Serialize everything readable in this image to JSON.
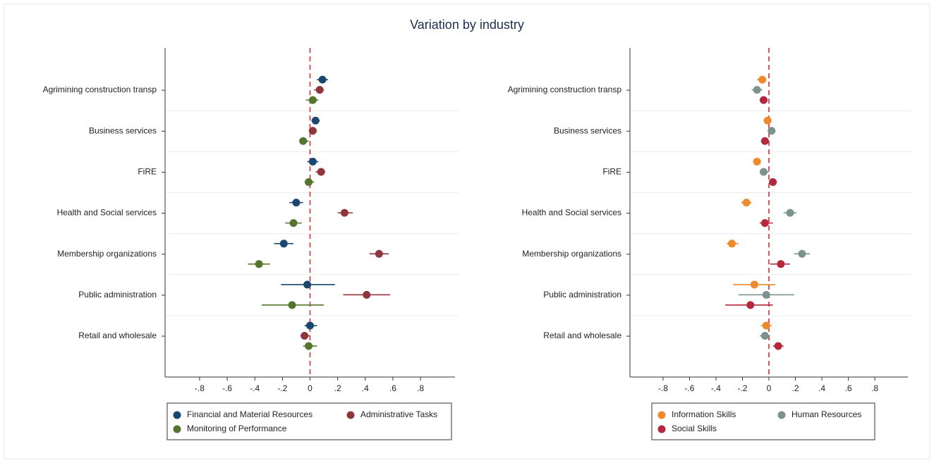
{
  "title": "Variation by industry",
  "chart_data": [
    {
      "type": "coefplot",
      "categories": [
        "Agrimining construction transp",
        "Business services",
        "FiRE",
        "Health and Social services",
        "Membership organizations",
        "Public administration",
        "Retail and wholesale"
      ],
      "xlim": [
        -1.05,
        1.05
      ],
      "xticks": [
        {
          "value": -0.8,
          "label": "-.8"
        },
        {
          "value": -0.6,
          "label": "-.6"
        },
        {
          "value": -0.4,
          "label": "-.4"
        },
        {
          "value": -0.2,
          "label": "-.2"
        },
        0,
        {
          "value": 0.2,
          "label": ".2"
        },
        {
          "value": 0.4,
          "label": ".4"
        },
        {
          "value": 0.6,
          "label": ".6"
        },
        {
          "value": 0.8,
          "label": ".8"
        }
      ],
      "refline": 0,
      "series": [
        {
          "name": "Financial and Material Resources",
          "color": "#1a476f",
          "values": [
            0.09,
            0.04,
            0.02,
            -0.1,
            -0.19,
            -0.02,
            0.0
          ],
          "lower": [
            0.05,
            0.01,
            -0.02,
            -0.15,
            -0.26,
            -0.21,
            -0.04
          ],
          "upper": [
            0.13,
            0.07,
            0.06,
            -0.05,
            -0.12,
            0.18,
            0.05
          ]
        },
        {
          "name": "Administrative Tasks",
          "color": "#90353b",
          "values": [
            0.07,
            0.02,
            0.08,
            0.25,
            0.5,
            0.41,
            -0.04
          ],
          "lower": [
            0.03,
            -0.01,
            0.04,
            0.2,
            0.43,
            0.24,
            -0.07
          ],
          "upper": [
            0.1,
            0.05,
            0.11,
            0.31,
            0.57,
            0.58,
            0.0
          ]
        },
        {
          "name": "Monitoring of Performance",
          "color": "#55752f",
          "values": [
            0.02,
            -0.05,
            -0.01,
            -0.12,
            -0.37,
            -0.13,
            -0.01
          ],
          "lower": [
            -0.03,
            -0.08,
            -0.04,
            -0.18,
            -0.45,
            -0.35,
            -0.05
          ],
          "upper": [
            0.06,
            -0.01,
            0.03,
            -0.06,
            -0.29,
            0.1,
            0.05
          ]
        }
      ]
    },
    {
      "type": "coefplot",
      "categories": [
        "Agrimining construction transp",
        "Business services",
        "FiRE",
        "Health and Social services",
        "Membership organizations",
        "Public administration",
        "Retail and wholesale"
      ],
      "xlim": [
        -1.05,
        1.05
      ],
      "xticks": [
        {
          "value": -0.8,
          "label": "-.8"
        },
        {
          "value": -0.6,
          "label": "-.6"
        },
        {
          "value": -0.4,
          "label": "-.4"
        },
        {
          "value": -0.2,
          "label": "-.2"
        },
        0,
        {
          "value": 0.2,
          "label": ".2"
        },
        {
          "value": 0.4,
          "label": ".4"
        },
        {
          "value": 0.6,
          "label": ".6"
        },
        {
          "value": 0.8,
          "label": ".8"
        }
      ],
      "refline": 0,
      "series": [
        {
          "name": "Information Skills",
          "color": "#f0892e",
          "values": [
            -0.05,
            -0.01,
            -0.09,
            -0.17,
            -0.28,
            -0.11,
            -0.02
          ],
          "lower": [
            -0.09,
            -0.04,
            -0.12,
            -0.21,
            -0.32,
            -0.27,
            -0.06
          ],
          "upper": [
            -0.02,
            0.02,
            -0.06,
            -0.13,
            -0.23,
            0.05,
            0.02
          ]
        },
        {
          "name": "Human Resources",
          "color": "#7b938c",
          "values": [
            -0.09,
            0.02,
            -0.04,
            0.16,
            0.25,
            -0.02,
            -0.03
          ],
          "lower": [
            -0.13,
            -0.01,
            -0.07,
            0.11,
            0.19,
            -0.23,
            -0.07
          ],
          "upper": [
            -0.05,
            0.05,
            0.0,
            0.21,
            0.31,
            0.19,
            0.01
          ]
        },
        {
          "name": "Social Skills",
          "color": "#b3283c",
          "values": [
            -0.04,
            -0.03,
            0.03,
            -0.03,
            0.09,
            -0.14,
            0.07
          ],
          "lower": [
            -0.07,
            -0.06,
            0.0,
            -0.07,
            0.01,
            -0.33,
            0.03
          ],
          "upper": [
            -0.01,
            0.0,
            0.06,
            0.03,
            0.16,
            0.03,
            0.11
          ]
        }
      ]
    }
  ]
}
